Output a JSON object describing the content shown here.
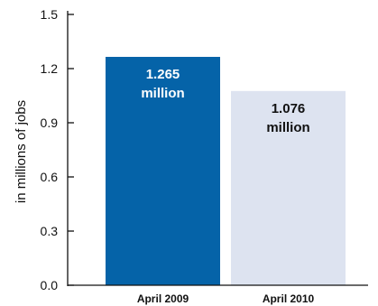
{
  "chart_data": {
    "type": "bar",
    "categories": [
      "April 2009",
      "April 2010"
    ],
    "values": [
      1.265,
      1.076
    ],
    "bar_labels": [
      [
        "1.265",
        "million"
      ],
      [
        "1.076",
        "million"
      ]
    ],
    "bar_colors": [
      "#0563a8",
      "#dde3f0"
    ],
    "bar_label_colors": [
      "#ffffff",
      "#111111"
    ],
    "ylabel": "in millions of jobs",
    "xlabel": "",
    "title": "",
    "ylim": [
      0,
      1.5
    ],
    "yticks": [
      "0.0",
      "0.3",
      "0.6",
      "0.9",
      "1.2",
      "1.5"
    ],
    "grid": false,
    "legend": "none",
    "axis_color": "#111111"
  }
}
